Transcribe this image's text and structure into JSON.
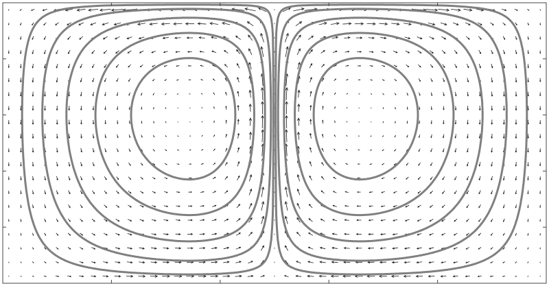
{
  "chart_data": {
    "type": "quiver-contour",
    "title": "",
    "xlabel": "",
    "ylabel": "",
    "xlim": [
      0,
      2
    ],
    "ylim": [
      0,
      1
    ],
    "tick_labels_shown": false,
    "grid": false,
    "legend": "none",
    "vortices": [
      {
        "name": "",
        "center": [
          0.66,
          0.66
        ],
        "rotation": "counter-clockwise"
      },
      {
        "name": "",
        "center": [
          1.34,
          0.66
        ],
        "rotation": "clockwise"
      }
    ],
    "streamline_levels": [
      0.85,
      0.65,
      0.45,
      0.27,
      0.12
    ],
    "vector_field": {
      "grid_cols": 45,
      "grid_rows": 20,
      "max_speed": 1.0
    },
    "colors": {
      "streamline": "#808080",
      "arrow": "#1a1a1a",
      "frame": "#444444",
      "background": "#ffffff"
    }
  }
}
